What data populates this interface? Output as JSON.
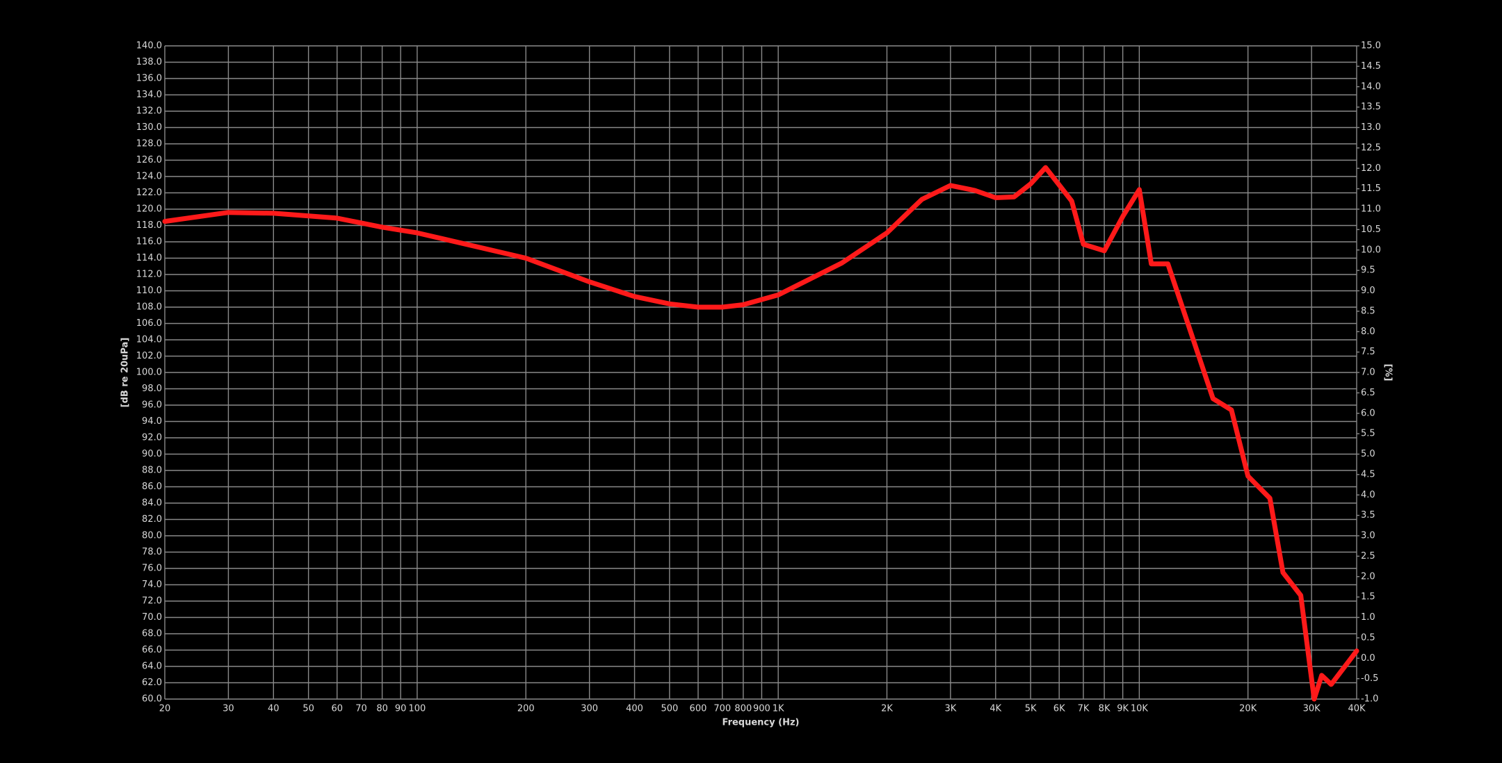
{
  "chart_data": {
    "type": "line",
    "xlabel": "Frequency  (Hz)",
    "ylabel": "[dB re 20uPa]",
    "y2label": "[%]",
    "xscale": "log",
    "grid": true,
    "xlim": [
      20,
      40000
    ],
    "xticks": [
      20,
      30,
      40,
      50,
      60,
      70,
      80,
      90,
      100,
      200,
      300,
      400,
      500,
      600,
      700,
      800,
      900,
      {
        "value": 1000,
        "label": "1K"
      },
      {
        "value": 2000,
        "label": "2K"
      },
      {
        "value": 3000,
        "label": "3K"
      },
      {
        "value": 4000,
        "label": "4K"
      },
      {
        "value": 5000,
        "label": "5K"
      },
      {
        "value": 6000,
        "label": "6K"
      },
      {
        "value": 7000,
        "label": "7K"
      },
      {
        "value": 8000,
        "label": "8K"
      },
      {
        "value": 9000,
        "label": "9K"
      },
      {
        "value": 10000,
        "label": "10K"
      },
      {
        "value": 20000,
        "label": "20K"
      },
      {
        "value": 30000,
        "label": "30K"
      },
      {
        "value": 40000,
        "label": "40K"
      }
    ],
    "ylim": [
      60,
      140
    ],
    "yticks": [
      {
        "value": 60,
        "label": "60.0"
      },
      {
        "value": 62,
        "label": "62.0"
      },
      {
        "value": 64,
        "label": "64.0"
      },
      {
        "value": 66,
        "label": "66.0"
      },
      {
        "value": 68,
        "label": "68.0"
      },
      {
        "value": 70,
        "label": "70.0"
      },
      {
        "value": 72,
        "label": "72.0"
      },
      {
        "value": 74,
        "label": "74.0"
      },
      {
        "value": 76,
        "label": "76.0"
      },
      {
        "value": 78,
        "label": "78.0"
      },
      {
        "value": 80,
        "label": "80.0"
      },
      {
        "value": 82,
        "label": "82.0"
      },
      {
        "value": 84,
        "label": "84.0"
      },
      {
        "value": 86,
        "label": "86.0"
      },
      {
        "value": 88,
        "label": "88.0"
      },
      {
        "value": 90,
        "label": "90.0"
      },
      {
        "value": 92,
        "label": "92.0"
      },
      {
        "value": 94,
        "label": "94.0"
      },
      {
        "value": 96,
        "label": "96.0"
      },
      {
        "value": 98,
        "label": "98.0"
      },
      {
        "value": 100,
        "label": "100.0"
      },
      {
        "value": 102,
        "label": "102.0"
      },
      {
        "value": 104,
        "label": "104.0"
      },
      {
        "value": 106,
        "label": "106.0"
      },
      {
        "value": 108,
        "label": "108.0"
      },
      {
        "value": 110,
        "label": "110.0"
      },
      {
        "value": 112,
        "label": "112.0"
      },
      {
        "value": 114,
        "label": "114.0"
      },
      {
        "value": 116,
        "label": "116.0"
      },
      {
        "value": 118,
        "label": "118.0"
      },
      {
        "value": 120,
        "label": "120.0"
      },
      {
        "value": 122,
        "label": "122.0"
      },
      {
        "value": 124,
        "label": "124.0"
      },
      {
        "value": 126,
        "label": "126.0"
      },
      {
        "value": 128,
        "label": "128.0"
      },
      {
        "value": 130,
        "label": "130.0"
      },
      {
        "value": 132,
        "label": "132.0"
      },
      {
        "value": 134,
        "label": "134.0"
      },
      {
        "value": 136,
        "label": "136.0"
      },
      {
        "value": 138,
        "label": "138.0"
      },
      {
        "value": 140,
        "label": "140.0"
      }
    ],
    "y2lim": [
      -1,
      15
    ],
    "y2ticks": [
      {
        "value": -1,
        "label": "-1.0"
      },
      -0.5,
      {
        "value": 0,
        "label": "0.0"
      },
      0.5,
      {
        "value": 1,
        "label": "1.0"
      },
      1.5,
      {
        "value": 2,
        "label": "2.0"
      },
      2.5,
      {
        "value": 3,
        "label": "3.0"
      },
      3.5,
      {
        "value": 4,
        "label": "4.0"
      },
      4.5,
      {
        "value": 5,
        "label": "5.0"
      },
      5.5,
      {
        "value": 6,
        "label": "6.0"
      },
      6.5,
      {
        "value": 7,
        "label": "7.0"
      },
      7.5,
      {
        "value": 8,
        "label": "8.0"
      },
      8.5,
      {
        "value": 9,
        "label": "9.0"
      },
      9.5,
      {
        "value": 10,
        "label": "10.0"
      },
      10.5,
      {
        "value": 11,
        "label": "11.0"
      },
      11.5,
      {
        "value": 12,
        "label": "12.0"
      },
      12.5,
      {
        "value": 13,
        "label": "13.0"
      },
      13.5,
      {
        "value": 14,
        "label": "14.0"
      },
      14.5,
      {
        "value": 15,
        "label": "15.0"
      }
    ],
    "x": [
      20,
      30,
      40,
      60,
      80,
      100,
      200,
      300,
      400,
      500,
      600,
      700,
      800,
      1000,
      1500,
      2000,
      2500,
      3000,
      3500,
      4000,
      4500,
      5000,
      5500,
      6500,
      7000,
      8000,
      9000,
      10000,
      10800,
      12000,
      16000,
      18000,
      20000,
      23000,
      25000,
      28000,
      30500,
      32000,
      34000,
      40000
    ],
    "series": [
      {
        "color": "#ff1a1a",
        "values": [
          118.5,
          119.6,
          119.5,
          118.9,
          117.8,
          117.1,
          114.0,
          111.1,
          109.3,
          108.4,
          108.0,
          108.0,
          108.3,
          109.5,
          113.4,
          117.1,
          121.2,
          122.9,
          122.3,
          121.4,
          121.5,
          123.1,
          125.1,
          121.0,
          115.7,
          114.9,
          119.1,
          122.4,
          113.3,
          113.3,
          96.8,
          95.4,
          87.3,
          84.6,
          75.5,
          72.7,
          60.0,
          62.9,
          61.8,
          65.9
        ]
      }
    ]
  }
}
